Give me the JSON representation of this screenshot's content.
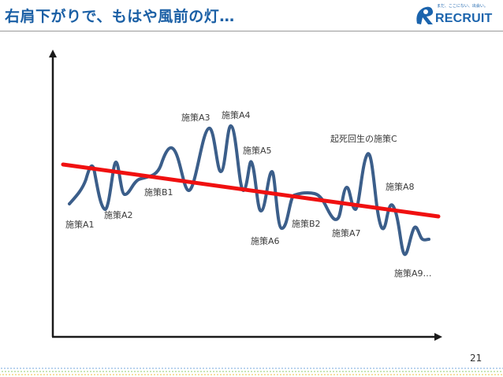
{
  "slide": {
    "title": "右肩下がりで、もはや風前の灯…",
    "page_number": "21"
  },
  "logo": {
    "tagline": "まだ、ここにない、出会い。",
    "wordmark": "RECRUIT",
    "brand_color": "#1b64ad"
  },
  "diagram": {
    "wave_color": "#3b5e8a",
    "trend_color": "#f01010",
    "labels": {
      "a1": "施策A1",
      "a2": "施策A2",
      "b1": "施策B1",
      "a3": "施策A3",
      "a4": "施策A4",
      "a5": "施策A5",
      "a6": "施策A6",
      "b2": "施策B2",
      "a7": "施策A7",
      "a8": "施策A8",
      "a9": "施策A9…",
      "c": "起死回生の施策C"
    }
  }
}
